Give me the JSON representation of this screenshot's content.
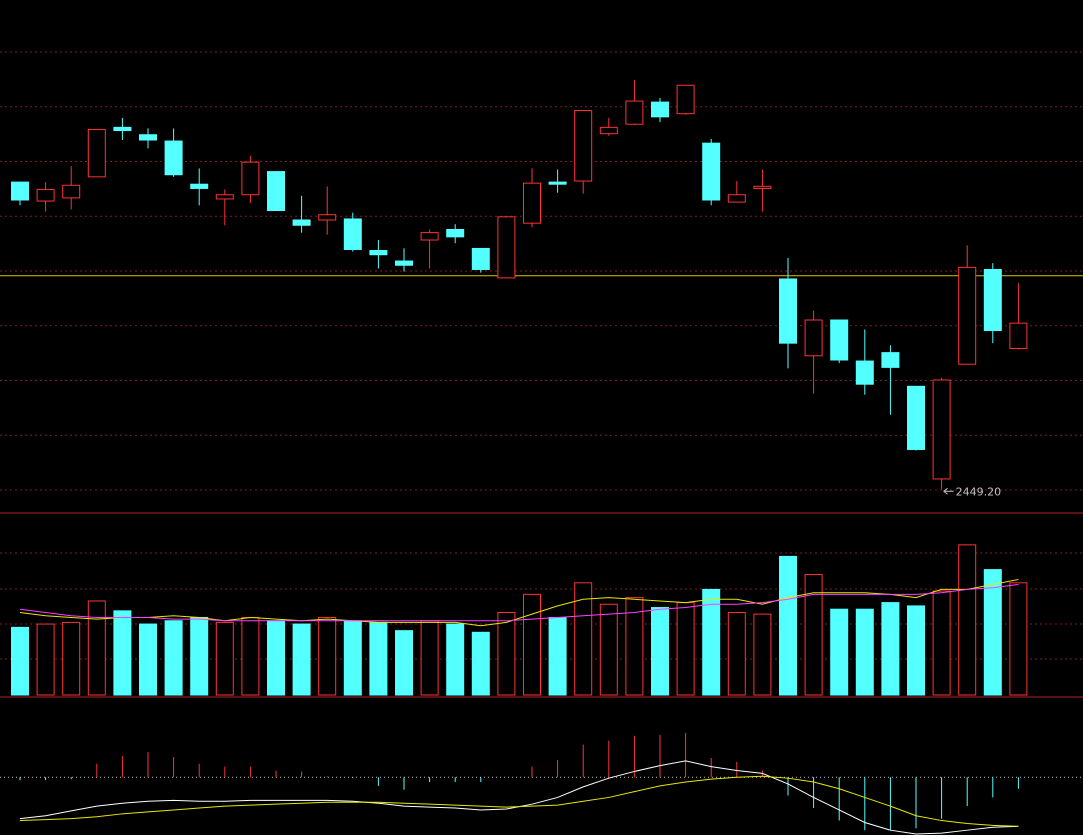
{
  "chart_data": [
    {
      "type": "candlestick",
      "open": [
        2741,
        2723,
        2726,
        2746,
        2793,
        2786,
        2780,
        2739,
        2725,
        2729,
        2751,
        2705,
        2705,
        2706,
        2676,
        2666,
        2686,
        2696,
        2678,
        2650,
        2702,
        2741,
        2742,
        2787,
        2796,
        2817,
        2806,
        2778,
        2722,
        2735,
        2649,
        2576,
        2610,
        2571,
        2579,
        2547,
        2459,
        2568,
        2658,
        2583
      ],
      "high": [
        2741,
        2741,
        2756,
        2791,
        2802,
        2792,
        2792,
        2754,
        2734,
        2766,
        2751,
        2728,
        2737,
        2712,
        2686,
        2678,
        2696,
        2701,
        2678,
        2708,
        2754,
        2753,
        2809,
        2802,
        2838,
        2821,
        2833,
        2782,
        2742,
        2753,
        2669,
        2619,
        2610,
        2601,
        2586,
        2547,
        2555,
        2681,
        2664,
        2645
      ],
      "low": [
        2719,
        2713,
        2715,
        2746,
        2781,
        2773,
        2746,
        2719,
        2700,
        2721,
        2714,
        2693,
        2691,
        2675,
        2659,
        2656,
        2659,
        2683,
        2655,
        2650,
        2698,
        2731,
        2730,
        2785,
        2795,
        2798,
        2805,
        2719,
        2722,
        2713,
        2564,
        2540,
        2569,
        2539,
        2520,
        2486,
        2449.2,
        2568,
        2588,
        2582
      ],
      "close": [
        2724,
        2734,
        2738,
        2791,
        2790,
        2781,
        2748,
        2735,
        2729,
        2760,
        2714,
        2700,
        2710,
        2677,
        2672,
        2662,
        2693,
        2689,
        2658,
        2708,
        2740,
        2739,
        2809,
        2793,
        2818,
        2803,
        2833,
        2724,
        2729,
        2737,
        2588,
        2610,
        2572,
        2549,
        2565,
        2487,
        2553,
        2660,
        2600,
        2607
      ],
      "ylim": [
        2420,
        2895
      ],
      "ref_line": 2652,
      "up_color": "#ff3232",
      "down_color": "#54ffff",
      "ref_color": "#e0c000",
      "annotations": [
        {
          "value": 2449.2,
          "label": "2449.20"
        }
      ]
    },
    {
      "type": "volume",
      "values": [
        41,
        43,
        44,
        57,
        51,
        43,
        45,
        47,
        44,
        47,
        45,
        43,
        47,
        45,
        44,
        39,
        45,
        43,
        38,
        50,
        61,
        47,
        68,
        55,
        59,
        53,
        56,
        64,
        50,
        49,
        84,
        73,
        52,
        52,
        56,
        54,
        63,
        91,
        76,
        68
      ],
      "ylim": [
        0,
        100
      ],
      "lines": [
        {
          "color": "#e8e800",
          "values": [
            50,
            48,
            47,
            46,
            47,
            47,
            48,
            47,
            45,
            47,
            46,
            45,
            46,
            45,
            44,
            44,
            44,
            44,
            42,
            44,
            49,
            54,
            58,
            59,
            58,
            57,
            56,
            58,
            58,
            55,
            59,
            62,
            62,
            62,
            61,
            59,
            64,
            64,
            67,
            70
          ]
        },
        {
          "color": "#ff40ff",
          "values": [
            52,
            50,
            48,
            47,
            47,
            47,
            46,
            46,
            45,
            45,
            45,
            45,
            45,
            45,
            45,
            45,
            45,
            45,
            45,
            45,
            46,
            47,
            48,
            49,
            50,
            52,
            53,
            55,
            55,
            56,
            58,
            61,
            61,
            61,
            61,
            61,
            62,
            64,
            65,
            67
          ]
        }
      ]
    },
    {
      "type": "macd",
      "values": [
        -3,
        -3,
        -2,
        14,
        22,
        26,
        21,
        14,
        11,
        11,
        7,
        6,
        1,
        -1,
        -9,
        -13,
        -5,
        -5,
        -5,
        0,
        11,
        18,
        34,
        38,
        43,
        44,
        46,
        20,
        16,
        7,
        -19,
        -32,
        -45,
        -55,
        -55,
        -53,
        -43,
        -30,
        -21,
        -12
      ],
      "ylim": [
        -60,
        75
      ],
      "lines": [
        {
          "color": "#ffffff",
          "values": [
            -43,
            -40,
            -35,
            -30,
            -27,
            -25,
            -24,
            -25,
            -25,
            -24,
            -24,
            -24,
            -24,
            -25,
            -27,
            -30,
            -31,
            -32,
            -34,
            -33,
            -28,
            -21,
            -10,
            -1,
            6,
            12,
            17,
            11,
            7,
            4,
            -7,
            -21,
            -34,
            -47,
            -55,
            -59,
            -58,
            -55,
            -52,
            -51
          ]
        },
        {
          "color": "#e8e800",
          "values": [
            -45,
            -44,
            -43,
            -41,
            -38,
            -36,
            -34,
            -32,
            -30,
            -29,
            -28,
            -27,
            -26,
            -26,
            -26,
            -27,
            -28,
            -29,
            -30,
            -31,
            -30,
            -29,
            -25,
            -21,
            -15,
            -9,
            -5,
            -2,
            0,
            1,
            -1,
            -5,
            -12,
            -21,
            -30,
            -40,
            -45,
            -48,
            -50,
            -51
          ]
        }
      ]
    }
  ]
}
